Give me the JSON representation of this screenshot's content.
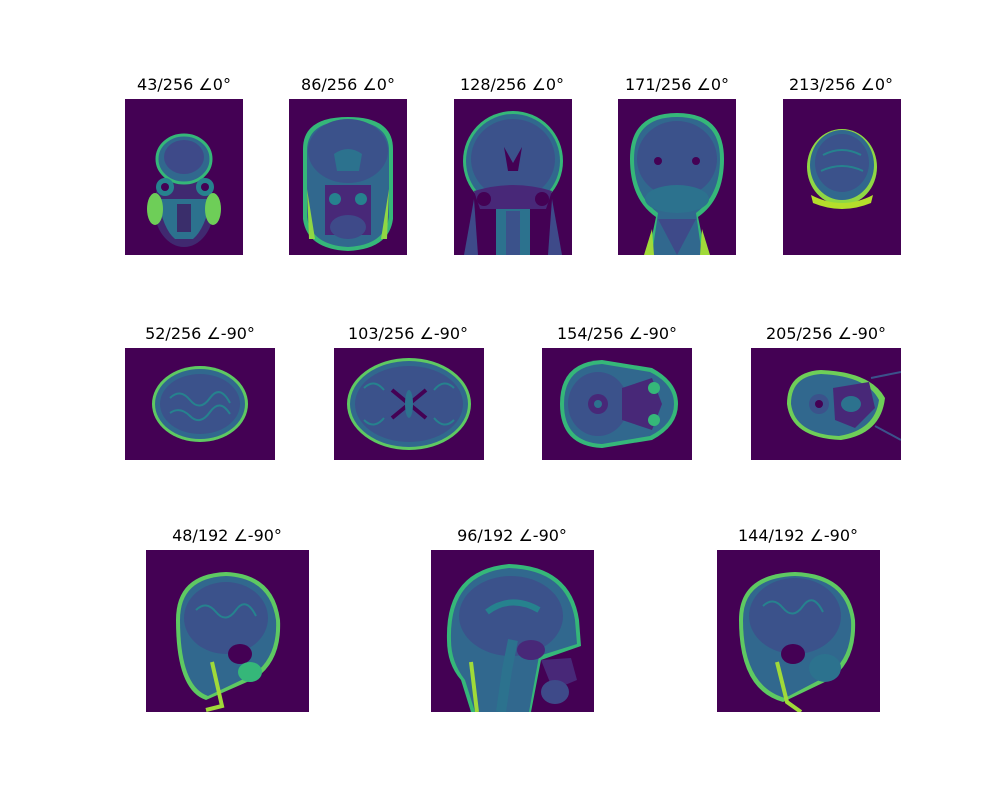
{
  "figure": {
    "colormap": "viridis",
    "background": "#ffffff",
    "rows": [
      {
        "view": "coronal",
        "panels": [
          {
            "title": "43/256 ∠0°"
          },
          {
            "title": "86/256 ∠0°"
          },
          {
            "title": "128/256 ∠0°"
          },
          {
            "title": "171/256 ∠0°"
          },
          {
            "title": "213/256 ∠0°"
          }
        ]
      },
      {
        "view": "axial",
        "panels": [
          {
            "title": "52/256 ∠-90°"
          },
          {
            "title": "103/256 ∠-90°"
          },
          {
            "title": "154/256 ∠-90°"
          },
          {
            "title": "205/256 ∠-90°"
          }
        ]
      },
      {
        "view": "sagittal",
        "panels": [
          {
            "title": "48/192 ∠-90°"
          },
          {
            "title": "96/192 ∠-90°"
          },
          {
            "title": "144/192 ∠-90°"
          }
        ]
      }
    ]
  }
}
